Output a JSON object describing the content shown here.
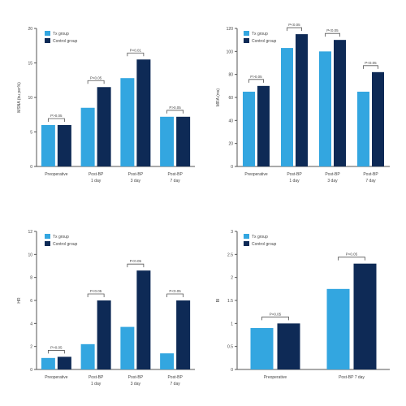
{
  "chart_data": [
    {
      "type": "bar",
      "ylabel": "MSNA (bu per%)",
      "ylim": [
        0,
        20
      ],
      "yticks": [
        "0",
        "5",
        "10",
        "15",
        "20"
      ],
      "categories": [
        [
          "Preoperative"
        ],
        [
          "Post-BP",
          "1 day"
        ],
        [
          "Post-BP",
          "3 day"
        ],
        [
          "Post-BP",
          "7 day"
        ]
      ],
      "series": [
        {
          "name": "Tx group",
          "color": "#33a6e0",
          "values": [
            6.0,
            8.5,
            12.8,
            7.2
          ]
        },
        {
          "name": "Control group",
          "color": "#0e2a56",
          "values": [
            6.0,
            11.5,
            15.5,
            7.2
          ]
        }
      ],
      "annotations": [
        "P>0.05",
        "P<0.05",
        "P<0.01",
        "P>0.05"
      ],
      "legend": "top-left"
    },
    {
      "type": "bar",
      "ylabel": "MRA (ms)",
      "ylim": [
        0,
        120
      ],
      "yticks": [
        "0",
        "20",
        "40",
        "60",
        "80",
        "100",
        "120"
      ],
      "categories": [
        [
          "Preoperative"
        ],
        [
          "Post-BP",
          "1 day"
        ],
        [
          "Post-BP",
          "3 day"
        ],
        [
          "Post-BP",
          "7 day"
        ]
      ],
      "series": [
        {
          "name": "Tx group",
          "color": "#33a6e0",
          "values": [
            65,
            103,
            100,
            65
          ]
        },
        {
          "name": "Control group",
          "color": "#0e2a56",
          "values": [
            70,
            115,
            110,
            82
          ]
        }
      ],
      "annotations": [
        "P>0.05",
        "P<0.05",
        "P<0.05",
        "P<0.05"
      ],
      "legend": "top-left"
    },
    {
      "type": "bar",
      "ylabel": "HR",
      "ylim": [
        0,
        12
      ],
      "yticks": [
        "0",
        "2",
        "4",
        "6",
        "8",
        "10",
        "12"
      ],
      "categories": [
        [
          "Preoperative"
        ],
        [
          "Post-BP",
          "1 day"
        ],
        [
          "Post-BP",
          "3 day"
        ],
        [
          "Post-BP",
          "7 day"
        ]
      ],
      "series": [
        {
          "name": "Tx group",
          "color": "#33a6e0",
          "values": [
            1.0,
            2.2,
            3.7,
            1.4
          ]
        },
        {
          "name": "Control group",
          "color": "#0e2a56",
          "values": [
            1.1,
            6.0,
            8.6,
            6.0
          ]
        }
      ],
      "annotations": [
        "P>0.05",
        "P<0.05",
        "P<0.05",
        "P<0.05"
      ],
      "legend": "top-left"
    },
    {
      "type": "bar",
      "ylabel": "BI",
      "ylim": [
        0,
        3
      ],
      "yticks": [
        "0",
        "0.5",
        "1",
        "1.5",
        "2",
        "2.5",
        "3"
      ],
      "categories": [
        [
          "Preoperative"
        ],
        [
          "Post-BP 7 day"
        ]
      ],
      "series": [
        {
          "name": "Tx group",
          "color": "#33a6e0",
          "values": [
            0.9,
            1.75
          ]
        },
        {
          "name": "Control group",
          "color": "#0e2a56",
          "values": [
            1.0,
            2.3
          ]
        }
      ],
      "annotations": [
        "P>0.05",
        "P<0.05"
      ],
      "legend": "top-left"
    }
  ]
}
